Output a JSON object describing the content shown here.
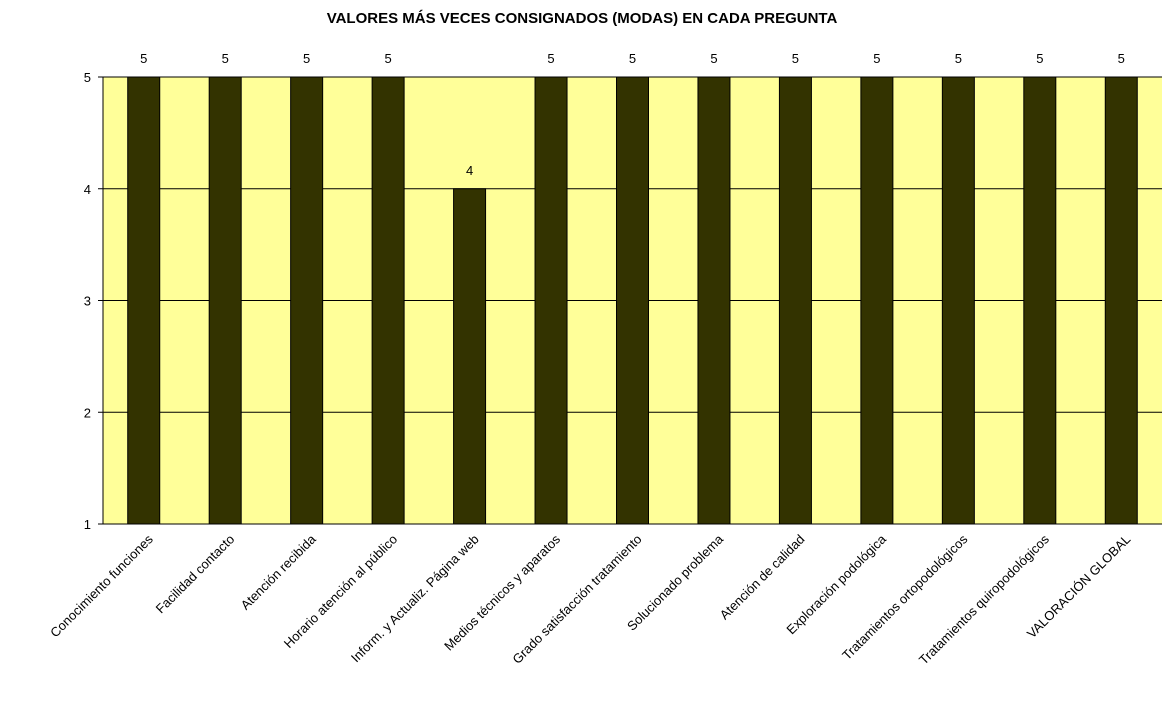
{
  "chart_data": {
    "type": "bar",
    "title": "VALORES MÁS VECES CONSIGNADOS (MODAS) EN CADA PREGUNTA",
    "categories": [
      "Conocimiento funciones",
      "Facilidad contacto",
      "Atención recibida",
      "Horario atención al público",
      "Inform. y Actualiz. Página web",
      "Medios técnicos y aparatos",
      "Grado satisfacción tratamiento",
      "Solucionado problema",
      "Atención de calidad",
      "Exploración podológica",
      "Tratamientos ortopodológicos",
      "Tratamientos quiropodológicos",
      "VALORACIÓN GLOBAL"
    ],
    "values": [
      5,
      5,
      5,
      5,
      4,
      5,
      5,
      5,
      5,
      5,
      5,
      5,
      5
    ],
    "color": "#333300",
    "plot_background": "#ffff99",
    "ylim": [
      1,
      5
    ],
    "yticks": [
      1,
      2,
      3,
      4,
      5
    ],
    "grid": true
  }
}
